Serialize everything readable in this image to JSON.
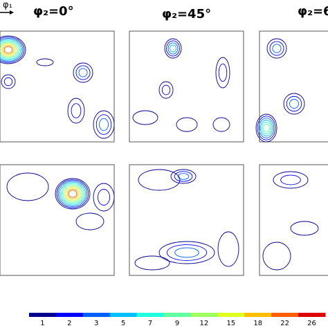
{
  "chart_data": {
    "type": "contour",
    "axis_label": "φ₁",
    "panel_titles": [
      "φ₂=0°",
      "φ₂=45°",
      "φ₂=6"
    ],
    "levels": [
      1,
      2,
      3,
      5,
      7,
      9,
      12,
      15,
      18,
      22,
      26
    ],
    "colors": [
      "#00008f",
      "#0000ff",
      "#005fff",
      "#00bfff",
      "#20ffdf",
      "#60ff9f",
      "#9fff60",
      "#dfff20",
      "#ffbf00",
      "#ff5f00",
      "#df0000"
    ]
  }
}
